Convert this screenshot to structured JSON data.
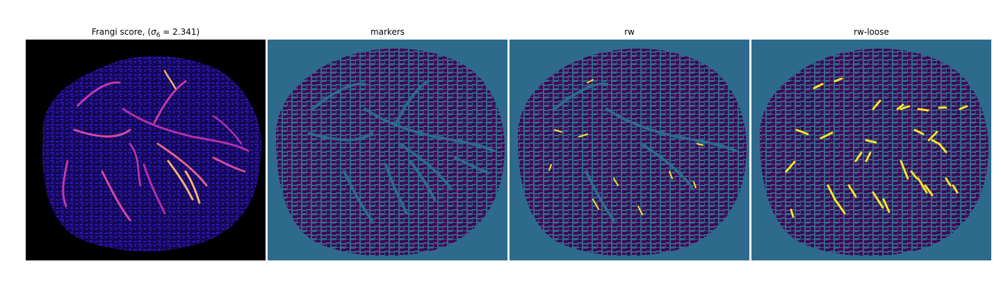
{
  "panels": [
    {
      "id": "frangi",
      "title_main": "Frangi score, (",
      "title_sigma": "σ",
      "title_sub": "6",
      "title_rest": " = 2.341)"
    },
    {
      "id": "markers",
      "title": "markers"
    },
    {
      "id": "rw",
      "title": "rw"
    },
    {
      "id": "rw-loose",
      "title": "rw-loose"
    }
  ],
  "colors": {
    "background": "#2e6a8c",
    "tissue": "#440154",
    "vessel_highlight": "#fde725",
    "frangi_background": "#000000",
    "frangi_tissue": "#1b0c8a",
    "frangi_vessel_low": "#b52fa8",
    "frangi_vessel_high": "#fcb07a"
  },
  "colormaps": {
    "frangi": "magma-like",
    "segmentation": "viridis"
  }
}
